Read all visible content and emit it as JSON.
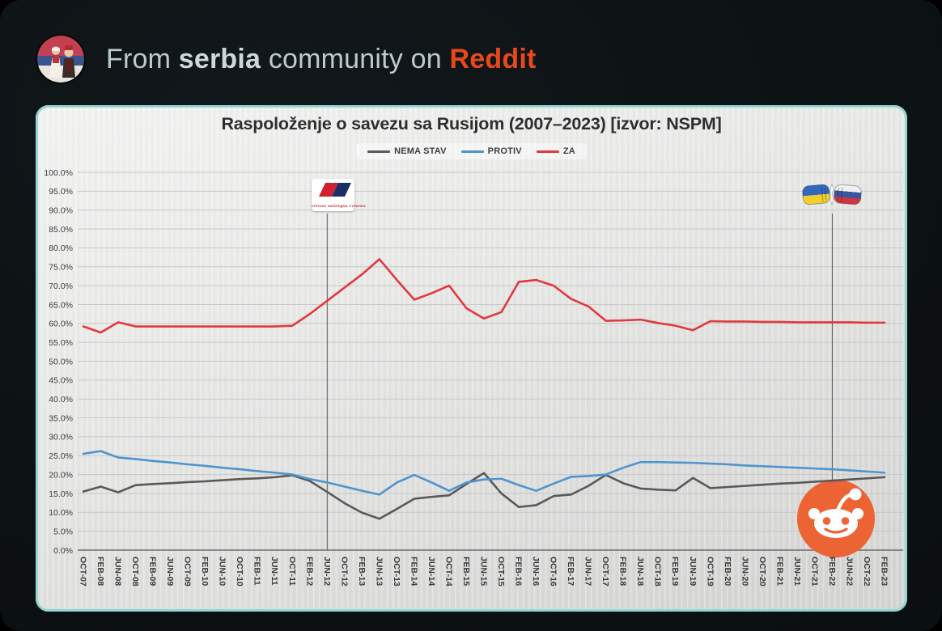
{
  "header": {
    "prefix": "From",
    "community": "serbia",
    "middle": "community on",
    "brand": "Reddit"
  },
  "annotations": {
    "sns_caption": "СРПСКА НАПРЕДНА СТРАНКА"
  },
  "colors": {
    "brand_orange": "#E8481C",
    "card_border_teal": "#93D7D1",
    "reddit_logo_orange": "#EC6334",
    "series_nema_stav": "#595959",
    "series_protiv": "#4E94CE",
    "series_za": "#E0393E",
    "gridline": "#C7C7C7",
    "axis_text": "#3A3A3A"
  },
  "chart_data": {
    "type": "line",
    "title": "Raspoloženje o savezu sa Rusijom (2007–2023) [izvor: NSPM]",
    "legend_position": "top",
    "grid": "horizontal",
    "ylim": [
      0,
      100
    ],
    "ytick_step": 5,
    "ytick_suffix": "%",
    "categories": [
      "OCT-07",
      "FEB-08",
      "JUN-08",
      "OCT-08",
      "FEB-09",
      "JUN-09",
      "OCT-09",
      "FEB-10",
      "JUN-10",
      "OCT-10",
      "FEB-11",
      "JUN-11",
      "OCT-11",
      "FEB-12",
      "JUN-12",
      "OCT-12",
      "FEB-13",
      "JUN-13",
      "OCT-13",
      "FEB-14",
      "JUN-14",
      "OCT-14",
      "FEB-15",
      "JUN-15",
      "OCT-15",
      "FEB-16",
      "JUN-16",
      "OCT-16",
      "FEB-17",
      "JUN-17",
      "OCT-17",
      "FEB-18",
      "JUN-18",
      "OCT-18",
      "FEB-19",
      "JUN-19",
      "OCT-19",
      "FEB-20",
      "JUN-20",
      "OCT-20",
      "FEB-21",
      "JUN-21",
      "OCT-21",
      "FEB-22",
      "JUN-22",
      "OCT-22",
      "FEB-23"
    ],
    "series": [
      {
        "name": "NEMA STAV",
        "color": "#595959",
        "values": [
          15.5,
          16.8,
          15.3,
          17.2,
          17.5,
          17.7,
          18.0,
          18.2,
          18.5,
          18.8,
          19.0,
          19.3,
          19.8,
          18.3,
          15.4,
          12.4,
          9.9,
          8.3,
          10.9,
          13.6,
          14.1,
          14.5,
          17.5,
          20.4,
          15.0,
          11.4,
          11.9,
          14.3,
          14.7,
          17.0,
          19.9,
          17.7,
          16.3,
          16.0,
          15.8,
          19.1,
          16.4,
          16.7,
          17.0,
          17.3,
          17.6,
          17.8,
          18.1,
          18.4,
          18.7,
          19.0,
          19.3
        ]
      },
      {
        "name": "PROTIV",
        "color": "#4E94CE",
        "values": [
          25.5,
          26.2,
          24.5,
          24.1,
          23.6,
          23.2,
          22.7,
          22.3,
          21.8,
          21.4,
          20.9,
          20.5,
          20.0,
          18.8,
          17.9,
          16.8,
          15.7,
          14.7,
          17.9,
          19.9,
          17.9,
          15.7,
          17.9,
          18.7,
          18.9,
          17.2,
          15.7,
          17.6,
          19.4,
          19.6,
          20.0,
          21.8,
          23.3,
          23.3,
          23.2,
          23.1,
          22.9,
          22.7,
          22.4,
          22.2,
          22.0,
          21.8,
          21.6,
          21.4,
          21.1,
          20.8,
          20.5
        ]
      },
      {
        "name": "ZA",
        "color": "#E0393E",
        "values": [
          59.2,
          57.6,
          60.3,
          59.2,
          59.2,
          59.2,
          59.2,
          59.2,
          59.2,
          59.2,
          59.2,
          59.2,
          59.4,
          62.5,
          66.0,
          69.5,
          73.0,
          77.0,
          71.5,
          66.3,
          68.0,
          70.0,
          64.0,
          61.3,
          63.0,
          71.0,
          71.5,
          70.0,
          66.5,
          64.5,
          60.7,
          60.8,
          61.0,
          60.1,
          59.4,
          58.2,
          60.6,
          60.5,
          60.5,
          60.4,
          60.4,
          60.3,
          60.3,
          60.3,
          60.3,
          60.2,
          60.2
        ]
      }
    ],
    "vertical_markers": [
      {
        "category": "JUN-12",
        "annotation": "sns-party-logo"
      },
      {
        "category": "FEB-22",
        "annotation": "ukraine-russia-flags-clash"
      }
    ]
  }
}
